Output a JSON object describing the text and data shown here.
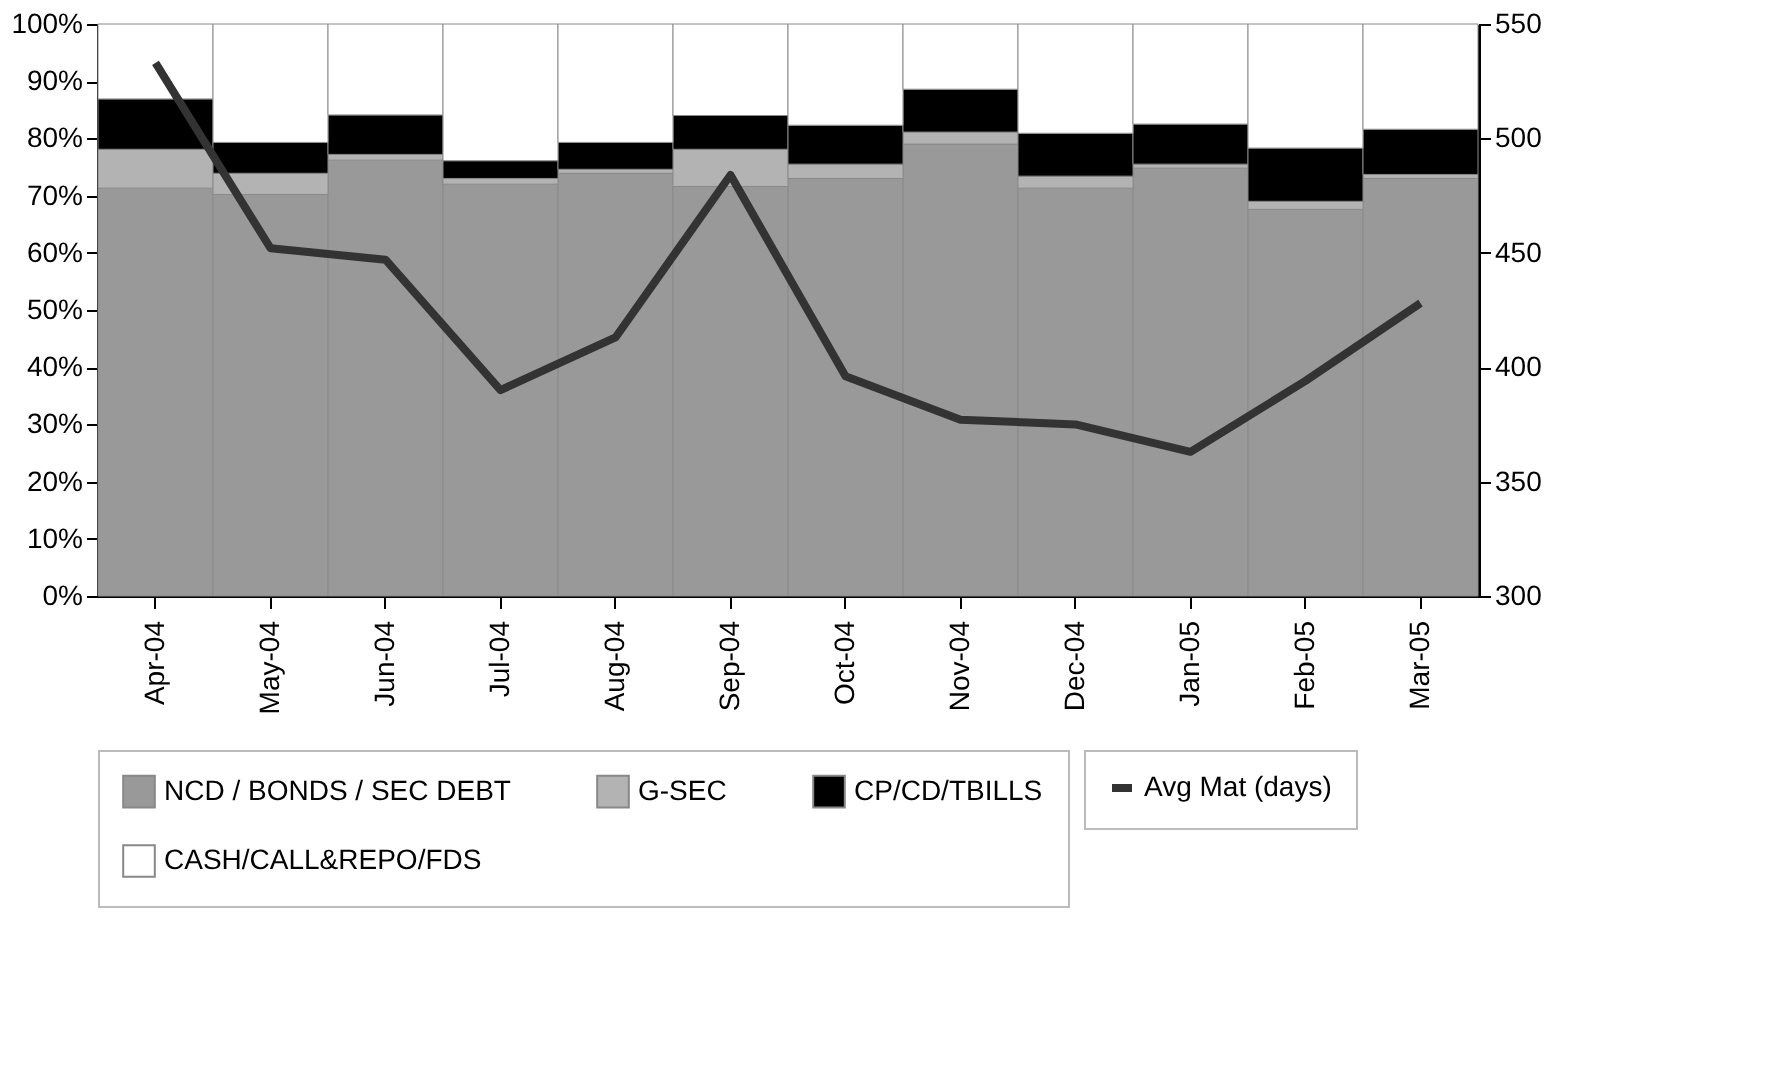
{
  "chart_data": {
    "type": "bar",
    "stacked": true,
    "categories": [
      "Apr-04",
      "May-04",
      "Jun-04",
      "Jul-04",
      "Aug-04",
      "Sep-04",
      "Oct-04",
      "Nov-04",
      "Dec-04",
      "Jan-05",
      "Feb-05",
      "Mar-05"
    ],
    "series": [
      {
        "name": "NCD / BONDS / SEC DEBT",
        "color": "#999999",
        "values": [
          71.3,
          70.2,
          76.2,
          72.0,
          73.9,
          71.6,
          73.0,
          79.0,
          71.3,
          74.8,
          67.6,
          73.0
        ]
      },
      {
        "name": "G-SEC",
        "color": "#b3b3b3",
        "values": [
          6.8,
          3.7,
          1.0,
          1.0,
          0.7,
          6.5,
          2.5,
          2.1,
          2.1,
          0.7,
          1.4,
          0.7
        ]
      },
      {
        "name": "CP/CD/TBILLS",
        "color": "#000000",
        "values": [
          8.8,
          5.4,
          6.9,
          3.1,
          4.7,
          5.9,
          6.8,
          7.5,
          7.5,
          7.0,
          9.3,
          7.9
        ]
      },
      {
        "name": "CASH/CALL&REPO/FDS",
        "color": "#ffffff",
        "values": [
          13.1,
          20.7,
          15.9,
          23.9,
          20.7,
          16.0,
          17.7,
          11.4,
          19.1,
          17.5,
          21.7,
          18.4
        ]
      },
      {
        "name": "Avg Mat (days)",
        "type": "line",
        "axis": "y2",
        "color": "#333333",
        "values": [
          533,
          452,
          447,
          390,
          413,
          484,
          396,
          377,
          375,
          363,
          394,
          428
        ]
      }
    ],
    "ylim": [
      0,
      100
    ],
    "yticks": [
      {
        "value": 0,
        "label": "0%"
      },
      {
        "value": 10,
        "label": "10%"
      },
      {
        "value": 20,
        "label": "20%"
      },
      {
        "value": 30,
        "label": "30%"
      },
      {
        "value": 40,
        "label": "40%"
      },
      {
        "value": 50,
        "label": "50%"
      },
      {
        "value": 60,
        "label": "60%"
      },
      {
        "value": 70,
        "label": "70%"
      },
      {
        "value": 80,
        "label": "80%"
      },
      {
        "value": 90,
        "label": "90%"
      },
      {
        "value": 100,
        "label": "100%"
      }
    ],
    "y2lim": [
      300,
      550
    ],
    "y2ticks": [
      300,
      350,
      400,
      450,
      500,
      550
    ],
    "legend": "bottom",
    "marker": "none",
    "line_style": "solid"
  }
}
